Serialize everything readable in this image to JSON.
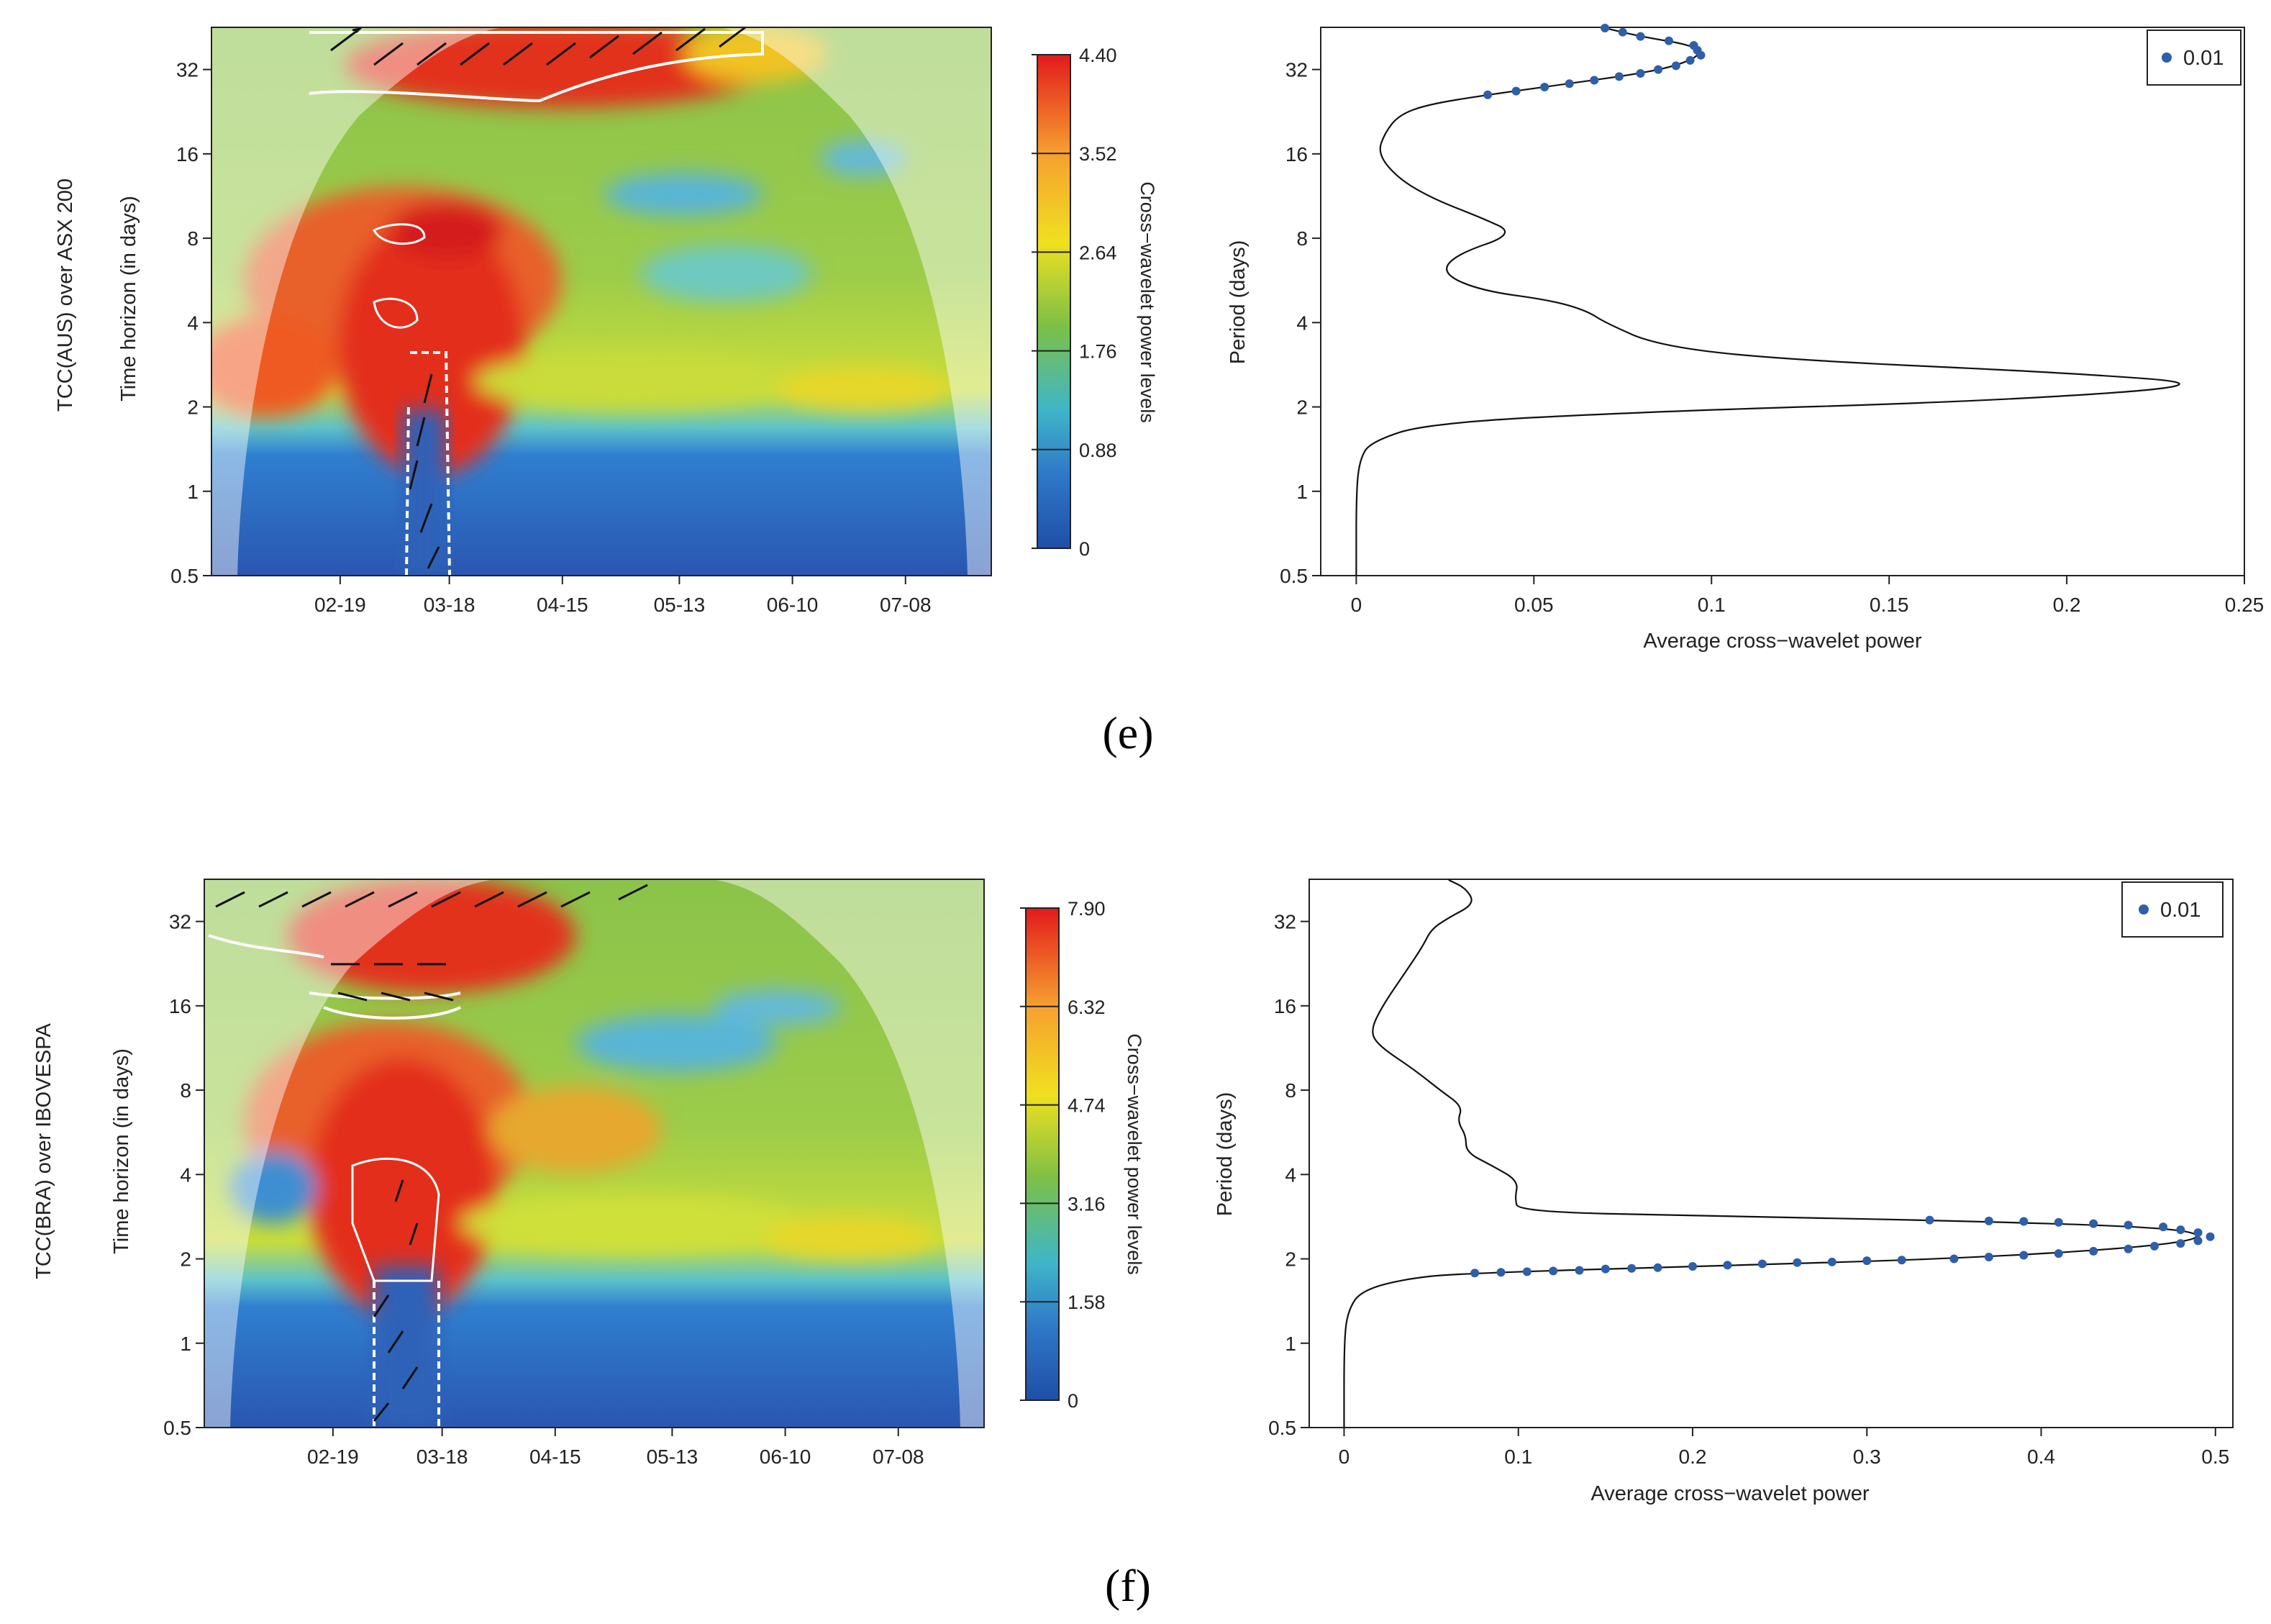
{
  "chart_data": [
    {
      "panel": "e",
      "panel_letter": "(e)",
      "heatmap": {
        "type": "heatmap",
        "ylabel_series": "TCC(AUS) over ASX 200",
        "ylabel_axis": "Time horizon (in days)",
        "y_ticks": [
          "32",
          "16",
          "8",
          "4",
          "2",
          "1",
          "0.5"
        ],
        "x_ticks": [
          "02-19",
          "03-18",
          "04-15",
          "05-13",
          "06-10",
          "07-08"
        ],
        "colorbar": {
          "title": "Cross−wavelet power levels",
          "levels": [
            "4.40",
            "3.52",
            "2.64",
            "1.76",
            "0.88",
            "0"
          ],
          "max": 4.4
        },
        "colors": {
          "high": "#d7191c",
          "mid": "#8bc34a",
          "low": "#2b5bb5"
        }
      },
      "profile": {
        "type": "line",
        "xlabel": "Average cross−wavelet power",
        "ylabel": "Period (days)",
        "x_ticks": [
          "0",
          "0.05",
          "0.1",
          "0.15",
          "0.2",
          "0.25"
        ],
        "y_ticks": [
          "32",
          "16",
          "8",
          "4",
          "2",
          "1",
          "0.5"
        ],
        "xlim": [
          -0.01,
          0.25
        ],
        "ylim_log2": [
          -1,
          5.5
        ],
        "legend": "0.01",
        "series_color": "#2e5fa8",
        "points": [
          {
            "x": 0.0,
            "y": 0.5
          },
          {
            "x": 0.0,
            "y": 1.0
          },
          {
            "x": 0.001,
            "y": 1.3
          },
          {
            "x": 0.004,
            "y": 1.5
          },
          {
            "x": 0.02,
            "y": 1.75
          },
          {
            "x": 0.08,
            "y": 1.92
          },
          {
            "x": 0.18,
            "y": 2.1
          },
          {
            "x": 0.245,
            "y": 2.4
          },
          {
            "x": 0.2,
            "y": 2.65
          },
          {
            "x": 0.12,
            "y": 2.95
          },
          {
            "x": 0.085,
            "y": 3.3
          },
          {
            "x": 0.07,
            "y": 4.0
          },
          {
            "x": 0.065,
            "y": 4.4
          },
          {
            "x": 0.055,
            "y": 4.8
          },
          {
            "x": 0.035,
            "y": 5.2
          },
          {
            "x": 0.024,
            "y": 6.0
          },
          {
            "x": 0.028,
            "y": 7.0
          },
          {
            "x": 0.045,
            "y": 8.3
          },
          {
            "x": 0.035,
            "y": 9.5
          },
          {
            "x": 0.022,
            "y": 11.0
          },
          {
            "x": 0.012,
            "y": 13.0
          },
          {
            "x": 0.006,
            "y": 16.0
          },
          {
            "x": 0.008,
            "y": 19.0
          },
          {
            "x": 0.012,
            "y": 22.0
          },
          {
            "x": 0.02,
            "y": 24.0
          },
          {
            "x": 0.037,
            "y": 26.0
          },
          {
            "x": 0.06,
            "y": 28.5
          },
          {
            "x": 0.08,
            "y": 31.0
          },
          {
            "x": 0.09,
            "y": 33.0
          },
          {
            "x": 0.097,
            "y": 36.0
          },
          {
            "x": 0.095,
            "y": 39.0
          },
          {
            "x": 0.08,
            "y": 42.0
          },
          {
            "x": 0.07,
            "y": 45.0
          }
        ],
        "significant_points": [
          {
            "x": 0.037,
            "y": 26.0
          },
          {
            "x": 0.045,
            "y": 26.8
          },
          {
            "x": 0.053,
            "y": 27.7
          },
          {
            "x": 0.06,
            "y": 28.5
          },
          {
            "x": 0.067,
            "y": 29.3
          },
          {
            "x": 0.074,
            "y": 30.2
          },
          {
            "x": 0.08,
            "y": 31.0
          },
          {
            "x": 0.085,
            "y": 32.0
          },
          {
            "x": 0.09,
            "y": 33.0
          },
          {
            "x": 0.094,
            "y": 34.5
          },
          {
            "x": 0.097,
            "y": 36.0
          },
          {
            "x": 0.096,
            "y": 37.5
          },
          {
            "x": 0.095,
            "y": 39.0
          },
          {
            "x": 0.088,
            "y": 40.5
          },
          {
            "x": 0.08,
            "y": 42.0
          },
          {
            "x": 0.075,
            "y": 43.5
          },
          {
            "x": 0.07,
            "y": 45.0
          }
        ]
      }
    },
    {
      "panel": "f",
      "panel_letter": "(f)",
      "heatmap": {
        "type": "heatmap",
        "ylabel_series": "TCC(BRA) over IBOVESPA",
        "ylabel_axis": "Time horizon (in days)",
        "y_ticks": [
          "32",
          "16",
          "8",
          "4",
          "2",
          "1",
          "0.5"
        ],
        "x_ticks": [
          "02-19",
          "03-18",
          "04-15",
          "05-13",
          "06-10",
          "07-08"
        ],
        "colorbar": {
          "title": "Cross−wavelet power levels",
          "levels": [
            "7.90",
            "6.32",
            "4.74",
            "3.16",
            "1.58",
            "0"
          ],
          "max": 7.9
        },
        "colors": {
          "high": "#d7191c",
          "mid": "#8bc34a",
          "low": "#2b5bb5"
        }
      },
      "profile": {
        "type": "line",
        "xlabel": "Average cross−wavelet power",
        "ylabel": "Period (days)",
        "x_ticks": [
          "0",
          "0.1",
          "0.2",
          "0.3",
          "0.4",
          "0.5"
        ],
        "y_ticks": [
          "32",
          "16",
          "8",
          "4",
          "2",
          "1",
          "0.5"
        ],
        "xlim": [
          -0.02,
          0.51
        ],
        "ylim_log2": [
          -1,
          5.5
        ],
        "legend": "0.01",
        "series_color": "#2e5fa8",
        "points": [
          {
            "x": 0.0,
            "y": 0.5
          },
          {
            "x": 0.0,
            "y": 1.0
          },
          {
            "x": 0.002,
            "y": 1.3
          },
          {
            "x": 0.01,
            "y": 1.55
          },
          {
            "x": 0.04,
            "y": 1.72
          },
          {
            "x": 0.075,
            "y": 1.78
          },
          {
            "x": 0.2,
            "y": 1.88
          },
          {
            "x": 0.35,
            "y": 2.0
          },
          {
            "x": 0.46,
            "y": 2.2
          },
          {
            "x": 0.497,
            "y": 2.4
          },
          {
            "x": 0.47,
            "y": 2.6
          },
          {
            "x": 0.336,
            "y": 2.75
          },
          {
            "x": 0.2,
            "y": 2.85
          },
          {
            "x": 0.1,
            "y": 2.95
          },
          {
            "x": 0.098,
            "y": 3.3
          },
          {
            "x": 0.1,
            "y": 3.8
          },
          {
            "x": 0.085,
            "y": 4.3
          },
          {
            "x": 0.07,
            "y": 4.8
          },
          {
            "x": 0.07,
            "y": 5.5
          },
          {
            "x": 0.065,
            "y": 6.2
          },
          {
            "x": 0.068,
            "y": 7.0
          },
          {
            "x": 0.055,
            "y": 8.0
          },
          {
            "x": 0.04,
            "y": 9.5
          },
          {
            "x": 0.02,
            "y": 11.5
          },
          {
            "x": 0.015,
            "y": 13.0
          },
          {
            "x": 0.022,
            "y": 16.0
          },
          {
            "x": 0.035,
            "y": 21.0
          },
          {
            "x": 0.045,
            "y": 26.0
          },
          {
            "x": 0.05,
            "y": 30.0
          },
          {
            "x": 0.06,
            "y": 33.0
          },
          {
            "x": 0.075,
            "y": 37.0
          },
          {
            "x": 0.07,
            "y": 42.0
          },
          {
            "x": 0.06,
            "y": 45.0
          }
        ],
        "significant_points": [
          {
            "x": 0.075,
            "y": 1.78
          },
          {
            "x": 0.09,
            "y": 1.79
          },
          {
            "x": 0.105,
            "y": 1.8
          },
          {
            "x": 0.12,
            "y": 1.81
          },
          {
            "x": 0.135,
            "y": 1.82
          },
          {
            "x": 0.15,
            "y": 1.84
          },
          {
            "x": 0.165,
            "y": 1.85
          },
          {
            "x": 0.18,
            "y": 1.86
          },
          {
            "x": 0.2,
            "y": 1.88
          },
          {
            "x": 0.22,
            "y": 1.9
          },
          {
            "x": 0.24,
            "y": 1.92
          },
          {
            "x": 0.26,
            "y": 1.94
          },
          {
            "x": 0.28,
            "y": 1.95
          },
          {
            "x": 0.3,
            "y": 1.97
          },
          {
            "x": 0.32,
            "y": 1.98
          },
          {
            "x": 0.35,
            "y": 2.0
          },
          {
            "x": 0.37,
            "y": 2.03
          },
          {
            "x": 0.39,
            "y": 2.06
          },
          {
            "x": 0.41,
            "y": 2.09
          },
          {
            "x": 0.43,
            "y": 2.13
          },
          {
            "x": 0.45,
            "y": 2.17
          },
          {
            "x": 0.465,
            "y": 2.22
          },
          {
            "x": 0.48,
            "y": 2.27
          },
          {
            "x": 0.49,
            "y": 2.32
          },
          {
            "x": 0.497,
            "y": 2.4
          },
          {
            "x": 0.49,
            "y": 2.48
          },
          {
            "x": 0.48,
            "y": 2.54
          },
          {
            "x": 0.47,
            "y": 2.6
          },
          {
            "x": 0.45,
            "y": 2.64
          },
          {
            "x": 0.43,
            "y": 2.67
          },
          {
            "x": 0.41,
            "y": 2.7
          },
          {
            "x": 0.39,
            "y": 2.72
          },
          {
            "x": 0.37,
            "y": 2.73
          },
          {
            "x": 0.336,
            "y": 2.75
          }
        ]
      }
    }
  ]
}
